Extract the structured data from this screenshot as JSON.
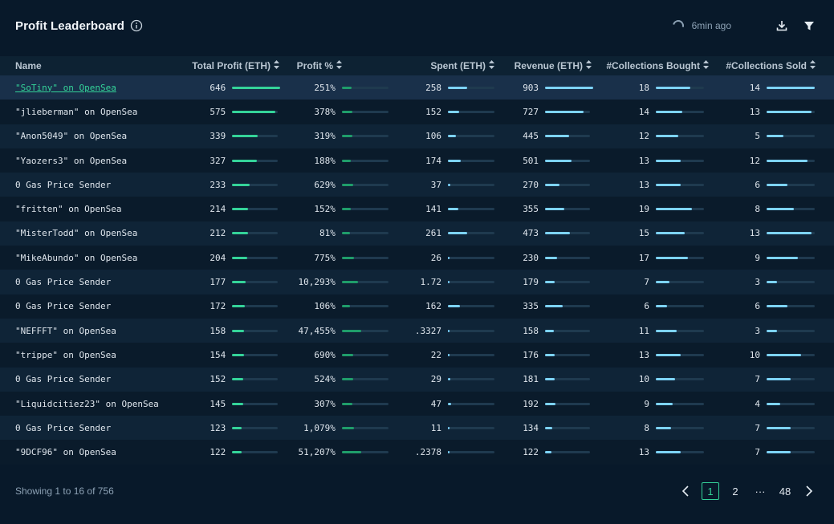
{
  "header": {
    "title": "Profit Leaderboard",
    "updated": "6min ago"
  },
  "colors": {
    "profit_bar": "#34d399",
    "profit_pct_bar": "#1f9d6a",
    "blue_bar": "#7dd3fc",
    "track": "#1f3a4f",
    "link": "#34d399"
  },
  "table": {
    "columns": [
      "Name",
      "Total Profit (ETH)",
      "Profit %",
      "Spent (ETH)",
      "Revenue (ETH)",
      "#Collections Bought",
      "#Collections Sold"
    ],
    "rows": [
      {
        "name": "\"SoTiny\" on OpenSea",
        "profit": "646",
        "profit_pct": "251%",
        "spent": "258",
        "revenue": "903",
        "bought": "18",
        "sold": "14",
        "link": true
      },
      {
        "name": "\"jlieberman\" on OpenSea",
        "profit": "575",
        "profit_pct": "378%",
        "spent": "152",
        "revenue": "727",
        "bought": "14",
        "sold": "13"
      },
      {
        "name": "\"Anon5049\" on OpenSea",
        "profit": "339",
        "profit_pct": "319%",
        "spent": "106",
        "revenue": "445",
        "bought": "12",
        "sold": "5"
      },
      {
        "name": "\"Yaozers3\" on OpenSea",
        "profit": "327",
        "profit_pct": "188%",
        "spent": "174",
        "revenue": "501",
        "bought": "13",
        "sold": "12"
      },
      {
        "name": "0 Gas Price Sender",
        "profit": "233",
        "profit_pct": "629%",
        "spent": "37",
        "revenue": "270",
        "bought": "13",
        "sold": "6"
      },
      {
        "name": "\"fritten\" on OpenSea",
        "profit": "214",
        "profit_pct": "152%",
        "spent": "141",
        "revenue": "355",
        "bought": "19",
        "sold": "8"
      },
      {
        "name": "\"MisterTodd\" on OpenSea",
        "profit": "212",
        "profit_pct": "81%",
        "spent": "261",
        "revenue": "473",
        "bought": "15",
        "sold": "13"
      },
      {
        "name": "\"MikeAbundo\" on OpenSea",
        "profit": "204",
        "profit_pct": "775%",
        "spent": "26",
        "revenue": "230",
        "bought": "17",
        "sold": "9"
      },
      {
        "name": "0 Gas Price Sender",
        "profit": "177",
        "profit_pct": "10,293%",
        "spent": "1.72",
        "revenue": "179",
        "bought": "7",
        "sold": "3"
      },
      {
        "name": "0 Gas Price Sender",
        "profit": "172",
        "profit_pct": "106%",
        "spent": "162",
        "revenue": "335",
        "bought": "6",
        "sold": "6"
      },
      {
        "name": "\"NEFFFT\" on OpenSea",
        "profit": "158",
        "profit_pct": "47,455%",
        "spent": ".3327",
        "revenue": "158",
        "bought": "11",
        "sold": "3"
      },
      {
        "name": "\"trippe\" on OpenSea",
        "profit": "154",
        "profit_pct": "690%",
        "spent": "22",
        "revenue": "176",
        "bought": "13",
        "sold": "10"
      },
      {
        "name": "0 Gas Price Sender",
        "profit": "152",
        "profit_pct": "524%",
        "spent": "29",
        "revenue": "181",
        "bought": "10",
        "sold": "7"
      },
      {
        "name": "\"Liquidcitiez23\" on OpenSea",
        "profit": "145",
        "profit_pct": "307%",
        "spent": "47",
        "revenue": "192",
        "bought": "9",
        "sold": "4"
      },
      {
        "name": "0 Gas Price Sender",
        "profit": "123",
        "profit_pct": "1,079%",
        "spent": "11",
        "revenue": "134",
        "bought": "8",
        "sold": "7"
      },
      {
        "name": "\"9DCF96\" on OpenSea",
        "profit": "122",
        "profit_pct": "51,207%",
        "spent": ".2378",
        "revenue": "122",
        "bought": "13",
        "sold": "7"
      }
    ]
  },
  "footer": {
    "showing": "Showing 1 to 16 of 756",
    "pages": [
      "1",
      "2",
      "···",
      "48"
    ],
    "active_page": "1"
  }
}
